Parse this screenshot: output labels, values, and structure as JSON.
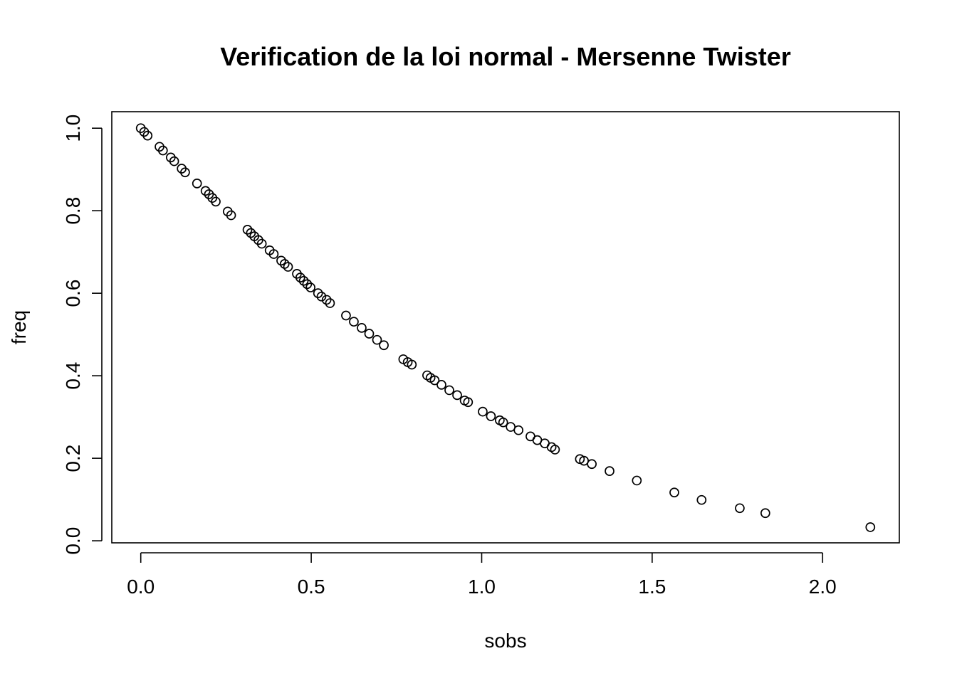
{
  "chart_data": {
    "type": "scatter",
    "title": "Verification de la loi normal - Mersenne Twister",
    "xlabel": "sobs",
    "ylabel": "freq",
    "xlim": [
      -0.085,
      2.225
    ],
    "ylim": [
      -0.005,
      1.04
    ],
    "xticks": [
      0.0,
      0.5,
      1.0,
      1.5,
      2.0
    ],
    "xtick_labels": [
      "0.0",
      "0.5",
      "1.0",
      "1.5",
      "2.0"
    ],
    "yticks": [
      0.0,
      0.2,
      0.4,
      0.6,
      0.8,
      1.0
    ],
    "ytick_labels": [
      "0.0",
      "0.2",
      "0.4",
      "0.6",
      "0.8",
      "1.0"
    ],
    "grid": false,
    "marker": "open-circle",
    "x": [
      0.0,
      0.01,
      0.02,
      0.055,
      0.065,
      0.088,
      0.098,
      0.12,
      0.13,
      0.165,
      0.19,
      0.2,
      0.21,
      0.22,
      0.255,
      0.265,
      0.313,
      0.323,
      0.333,
      0.345,
      0.355,
      0.378,
      0.39,
      0.412,
      0.422,
      0.432,
      0.458,
      0.468,
      0.478,
      0.488,
      0.498,
      0.52,
      0.53,
      0.545,
      0.555,
      0.602,
      0.625,
      0.648,
      0.67,
      0.693,
      0.713,
      0.77,
      0.783,
      0.795,
      0.84,
      0.85,
      0.862,
      0.882,
      0.905,
      0.928,
      0.95,
      0.96,
      1.003,
      1.027,
      1.053,
      1.063,
      1.085,
      1.108,
      1.143,
      1.163,
      1.185,
      1.205,
      1.215,
      1.288,
      1.3,
      1.323,
      1.375,
      1.455,
      1.565,
      1.645,
      1.757,
      1.832,
      2.14
    ],
    "y": [
      1.0,
      0.991,
      0.982,
      0.955,
      0.946,
      0.929,
      0.92,
      0.902,
      0.893,
      0.866,
      0.848,
      0.84,
      0.831,
      0.822,
      0.798,
      0.789,
      0.754,
      0.746,
      0.738,
      0.729,
      0.72,
      0.704,
      0.695,
      0.679,
      0.671,
      0.664,
      0.647,
      0.638,
      0.63,
      0.622,
      0.614,
      0.6,
      0.592,
      0.584,
      0.576,
      0.546,
      0.531,
      0.516,
      0.502,
      0.487,
      0.474,
      0.44,
      0.433,
      0.427,
      0.401,
      0.395,
      0.389,
      0.378,
      0.365,
      0.353,
      0.34,
      0.336,
      0.313,
      0.302,
      0.292,
      0.287,
      0.276,
      0.268,
      0.253,
      0.244,
      0.236,
      0.227,
      0.221,
      0.198,
      0.194,
      0.186,
      0.169,
      0.146,
      0.117,
      0.099,
      0.079,
      0.067,
      0.033
    ]
  }
}
